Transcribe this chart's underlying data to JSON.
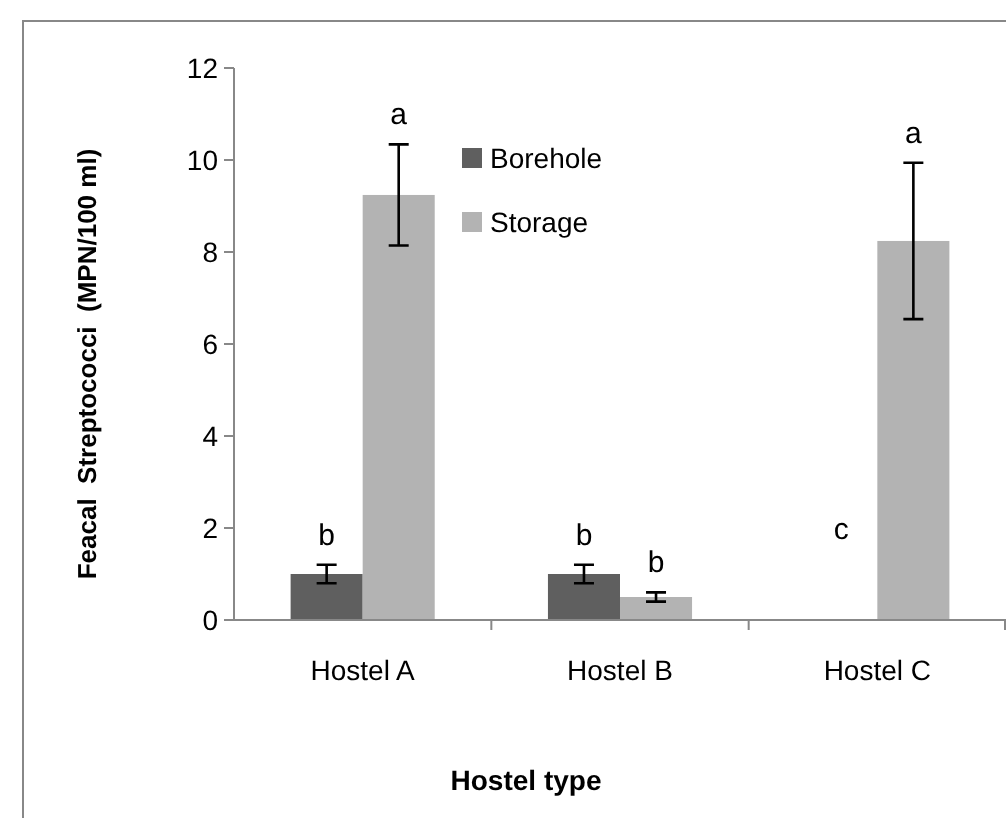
{
  "chart_data": {
    "type": "bar",
    "xlabel": "Hostel type",
    "ylabel": "Feacal  Streptococci  (MPN/100 ml)",
    "categories": [
      "Hostel A",
      "Hostel B",
      "Hostel C"
    ],
    "series": [
      {
        "name": "Borehole",
        "color": "#5f5f5f",
        "values": [
          1.0,
          1.0,
          null
        ],
        "errors": [
          0.2,
          0.2,
          null
        ],
        "value_labels": [
          "b",
          "b",
          null
        ]
      },
      {
        "name": "Storage",
        "color": "#b3b3b3",
        "values": [
          9.24,
          0.5,
          8.24
        ],
        "errors": [
          1.1,
          0.1,
          1.7
        ],
        "value_labels": [
          "a",
          "b",
          "a"
        ]
      }
    ],
    "annotations": [
      {
        "text": "c",
        "x": "Hostel C",
        "y": 2
      }
    ],
    "ylim": [
      0,
      12
    ],
    "yticks": [
      0,
      2,
      4,
      6,
      8,
      10,
      12
    ],
    "grid": false,
    "legend": "top"
  }
}
